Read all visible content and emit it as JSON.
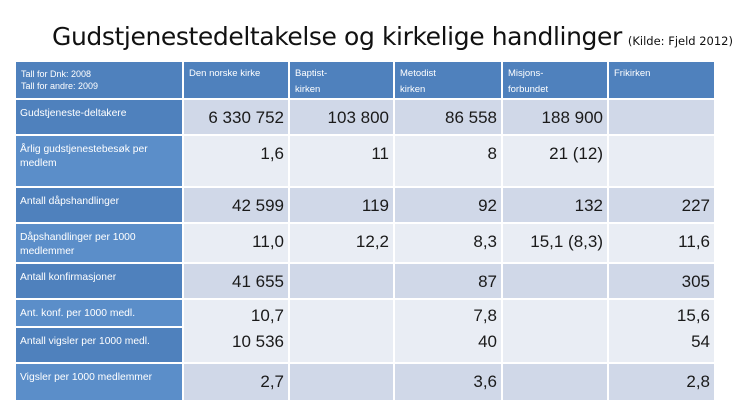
{
  "title": "Gudstjenestedeltakelse og kirkelige handlinger",
  "source": "(Kilde: Fjeld 2012)",
  "corner": {
    "line1": "Tall for Dnk: 2008",
    "line2": "Tall for andre: 2009"
  },
  "columns": {
    "c1": "Den norske kirke",
    "c2a": "Baptist-",
    "c2b": "kirken",
    "c3a": "Metodist",
    "c3b": "kirken",
    "c4a": "Misjons-",
    "c4b": "forbundet",
    "c5": "Frikirken"
  },
  "rows": {
    "r1": {
      "label": "Gudstjeneste-deltakere",
      "dnk": "6 330 752",
      "baptist": "103 800",
      "metodist": "86 558",
      "misjon": "188 900",
      "frikirken": ""
    },
    "r2": {
      "label": "Årlig gudstjenestebesøk per medlem",
      "dnk": "1,6",
      "baptist": "11",
      "metodist": "8",
      "misjon": "21 (12)",
      "frikirken": ""
    },
    "r3": {
      "label": "Antall dåpshandlinger",
      "dnk": "42 599",
      "baptist": "119",
      "metodist": "92",
      "misjon": "132",
      "frikirken": "227"
    },
    "r4": {
      "label": "Dåpshandlinger per 1000 medlemmer",
      "dnk": "11,0",
      "baptist": "12,2",
      "metodist": "8,3",
      "misjon": "15,1 (8,3)",
      "frikirken": "11,6"
    },
    "r5": {
      "label": "Antall konfirmasjoner",
      "dnk": "41 655",
      "baptist": "",
      "metodist": "87",
      "misjon": "",
      "frikirken": "305"
    },
    "r6": {
      "label": "Ant. konf. per 1000 medl.",
      "dnk": "10,7",
      "baptist": "",
      "metodist": "7,8",
      "misjon": "",
      "frikirken": "15,6"
    },
    "r7": {
      "label": "Antall vigsler per 1000 medl.",
      "dnk": "10 536",
      "baptist": "",
      "metodist": "40",
      "misjon": "",
      "frikirken": "54"
    },
    "r8": {
      "label": "Vigsler per 1000 medlemmer",
      "dnk": "2,7",
      "baptist": "",
      "metodist": "3,6",
      "misjon": "",
      "frikirken": "2,8"
    }
  }
}
